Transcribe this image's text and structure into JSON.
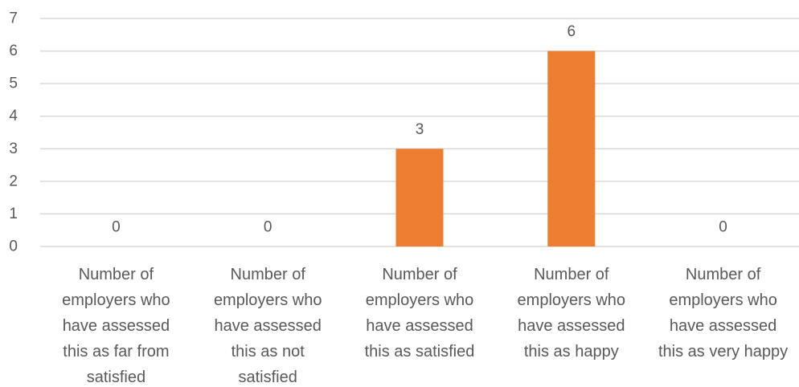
{
  "chart_data": {
    "type": "bar",
    "title": "",
    "xlabel": "",
    "ylabel": "",
    "categories": [
      "Number of employers who have assessed this as far from satisfied",
      "Number of employers who have assessed this as not satisfied",
      "Number of employers who have assessed this as satisfied",
      "Number of employers who have assessed this as happy",
      "Number of employers who have assessed this as very happy"
    ],
    "category_lines": [
      [
        "Number of",
        "employers who",
        "have assessed",
        "this as far from",
        "satisfied"
      ],
      [
        "Number of",
        "employers who",
        "have assessed",
        "this as not",
        "satisfied"
      ],
      [
        "Number of",
        "employers who",
        "have assessed",
        "this as satisfied"
      ],
      [
        "Number of",
        "employers who",
        "have assessed",
        "this as happy"
      ],
      [
        "Number of",
        "employers who",
        "have assessed",
        "this as very happy"
      ]
    ],
    "values": [
      0,
      0,
      3,
      6,
      0
    ],
    "data_labels": [
      "0",
      "0",
      "3",
      "6",
      "0"
    ],
    "ylim": [
      0,
      7
    ],
    "yticks": [
      "0",
      "1",
      "2",
      "3",
      "4",
      "5",
      "6",
      "7"
    ],
    "grid": true,
    "legend": "none",
    "colors": {
      "bar": "#ED7D31",
      "grid": "#D9D9D9",
      "text": "#595959"
    }
  }
}
